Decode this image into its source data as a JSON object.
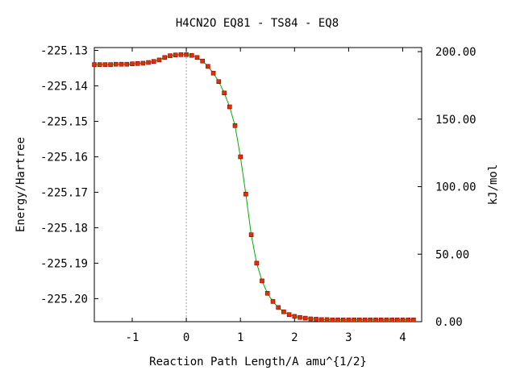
{
  "chart_data": {
    "type": "line",
    "title": "H4CN2O   EQ81 - TS84 - EQ8",
    "xlabel": "Reaction Path Length/A amu^{1/2}",
    "ylabel": "Energy/Hartree",
    "y2label": "kJ/mol",
    "xlim": [
      -1.7,
      4.35
    ],
    "ylim": [
      -225.2065,
      -225.1292
    ],
    "y2lim": [
      0.0,
      203.0
    ],
    "x_ticks": [
      -1,
      0,
      1,
      2,
      3,
      4
    ],
    "x_tick_labels": [
      "-1",
      "0",
      "1",
      "2",
      "3",
      "4"
    ],
    "y_ticks": [
      -225.13,
      -225.14,
      -225.15,
      -225.16,
      -225.17,
      -225.18,
      -225.19,
      -225.2
    ],
    "y_tick_labels": [
      "-225.13",
      "-225.14",
      "-225.15",
      "-225.16",
      "-225.17",
      "-225.18",
      "-225.19",
      "-225.20"
    ],
    "y2_ticks": [
      200,
      150,
      100,
      50,
      0
    ],
    "y2_tick_labels": [
      "200.00",
      "150.00",
      "100.00",
      "50.00",
      "0.00"
    ],
    "ts_marker_x": 0,
    "grid": false,
    "colors": {
      "line": "#00b000",
      "marker_fill": "#dd3300",
      "marker_edge": "#8b0000",
      "ts_marker": "#999999"
    },
    "series": [
      {
        "x": [
          -1.7,
          -1.6,
          -1.5,
          -1.4,
          -1.3,
          -1.2,
          -1.1,
          -1.0,
          -0.9,
          -0.8,
          -0.7,
          -0.6,
          -0.5,
          -0.4,
          -0.3,
          -0.2,
          -0.1,
          0.0,
          0.1,
          0.2,
          0.3,
          0.4,
          0.5,
          0.6,
          0.7,
          0.8,
          0.9,
          1.0,
          1.1,
          1.2,
          1.3,
          1.4,
          1.5,
          1.6,
          1.7,
          1.8,
          1.9,
          2.0,
          2.1,
          2.2,
          2.3,
          2.4,
          2.5,
          2.6,
          2.7,
          2.8,
          2.9,
          3.0,
          3.1,
          3.2,
          3.3,
          3.4,
          3.5,
          3.6,
          3.7,
          3.8,
          3.9,
          4.0,
          4.1,
          4.2
        ],
        "values": [
          -225.134,
          -225.134,
          -225.134,
          -225.134,
          -225.1339,
          -225.1339,
          -225.1339,
          -225.1338,
          -225.1337,
          -225.1336,
          -225.1334,
          -225.1331,
          -225.1327,
          -225.132,
          -225.1315,
          -225.1313,
          -225.1312,
          -225.1312,
          -225.1314,
          -225.132,
          -225.133,
          -225.1345,
          -225.1364,
          -225.1388,
          -225.142,
          -225.1459,
          -225.1512,
          -225.16,
          -225.1705,
          -225.182,
          -225.19,
          -225.195,
          -225.1985,
          -225.2008,
          -225.2025,
          -225.2037,
          -225.2045,
          -225.205,
          -225.2053,
          -225.2055,
          -225.2057,
          -225.2058,
          -225.2059,
          -225.2059,
          -225.206,
          -225.206,
          -225.206,
          -225.206,
          -225.206,
          -225.206,
          -225.206,
          -225.206,
          -225.206,
          -225.206,
          -225.206,
          -225.206,
          -225.206,
          -225.206,
          -225.206,
          -225.206
        ]
      }
    ]
  }
}
